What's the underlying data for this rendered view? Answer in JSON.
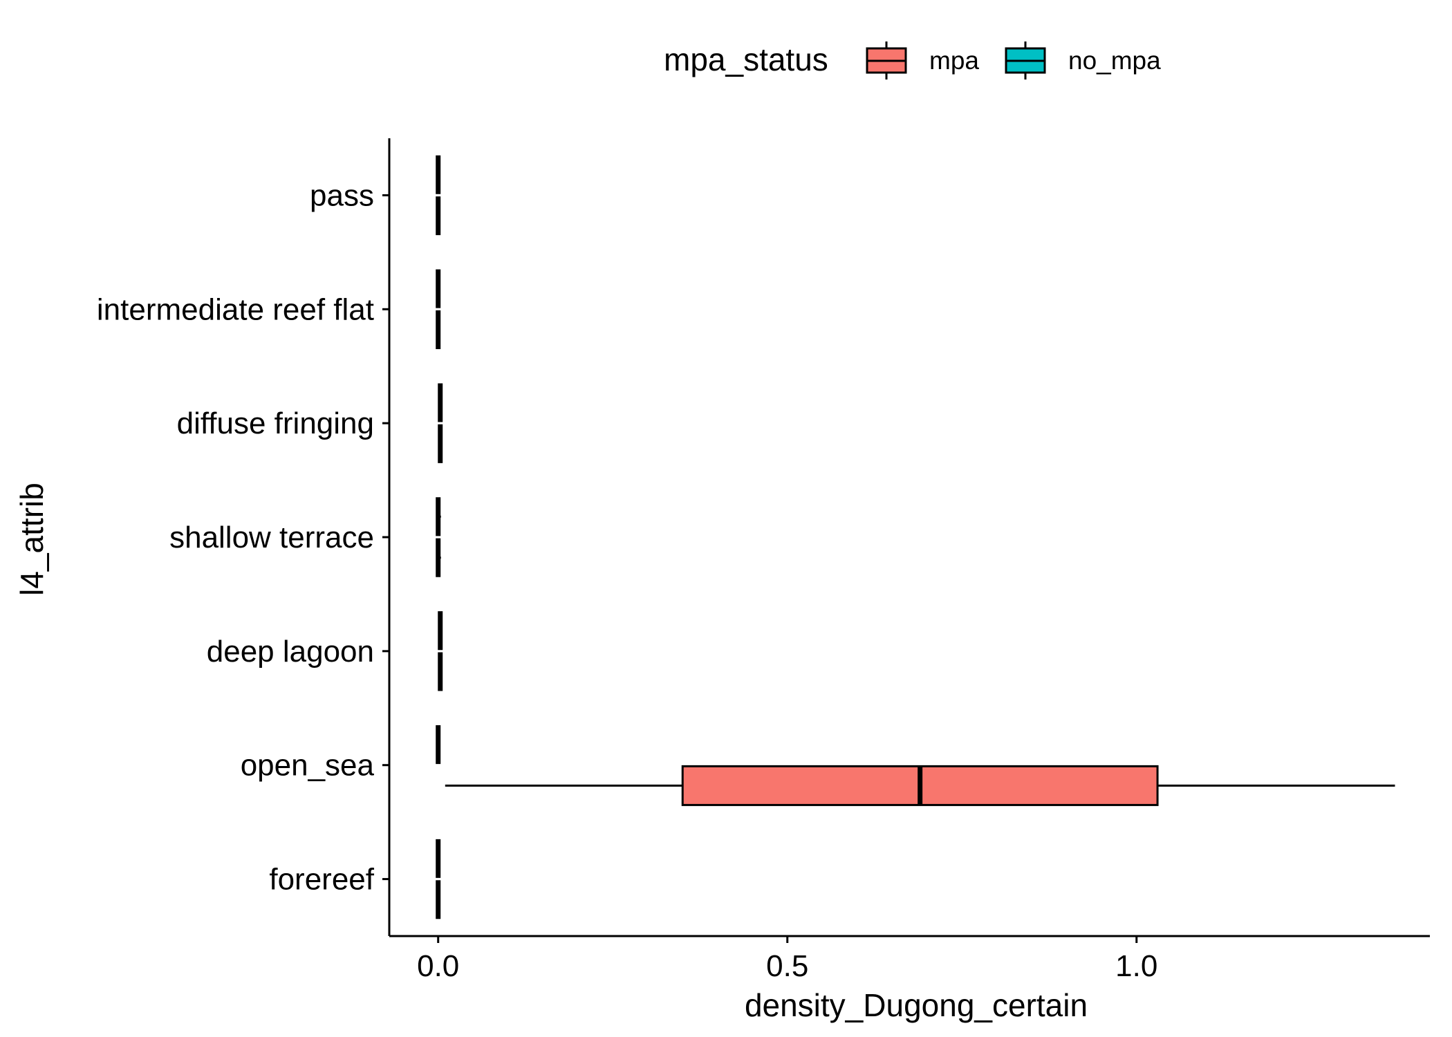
{
  "chart_data": {
    "type": "boxplot",
    "orientation": "horizontal",
    "title": "",
    "xlabel": "density_Dugong_certain",
    "ylabel": "l4_attrib",
    "xlim": [
      -0.07,
      1.42
    ],
    "x_ticks": [
      0.0,
      0.5,
      1.0
    ],
    "x_tick_labels": [
      "0.0",
      "0.5",
      "1.0"
    ],
    "categories": [
      "forereef",
      "open_sea",
      "deep lagoon",
      "shallow terrace",
      "diffuse fringing",
      "intermediate reef flat",
      "pass"
    ],
    "grid": false,
    "legend": {
      "title": "mpa_status",
      "position": "top",
      "entries": [
        {
          "label": "mpa",
          "color": "#F8766D"
        },
        {
          "label": "no_mpa",
          "color": "#00BFC4"
        }
      ]
    },
    "series": [
      {
        "name": "mpa",
        "color": "#F8766D",
        "boxes": [
          {
            "category": "forereef",
            "min": 0.0,
            "q1": 0.0,
            "median": 0.0,
            "q3": 0.0,
            "max": 0.0
          },
          {
            "category": "open_sea",
            "min": 0.01,
            "q1": 0.35,
            "median": 0.69,
            "q3": 1.03,
            "max": 1.37
          },
          {
            "category": "deep lagoon",
            "min": 0.003,
            "q1": 0.003,
            "median": 0.003,
            "q3": 0.003,
            "max": 0.003
          },
          {
            "category": "shallow terrace",
            "min": 0.0,
            "q1": 0.0,
            "median": 0.0,
            "q3": 0.0,
            "max": 0.004
          },
          {
            "category": "diffuse fringing",
            "min": 0.003,
            "q1": 0.003,
            "median": 0.003,
            "q3": 0.003,
            "max": 0.003
          },
          {
            "category": "intermediate reef flat",
            "min": 0.0,
            "q1": 0.0,
            "median": 0.0,
            "q3": 0.0,
            "max": 0.003
          },
          {
            "category": "pass",
            "min": 0.0,
            "q1": 0.0,
            "median": 0.0,
            "q3": 0.0,
            "max": 0.0
          }
        ]
      },
      {
        "name": "no_mpa",
        "color": "#00BFC4",
        "boxes": [
          {
            "category": "forereef",
            "min": 0.0,
            "q1": 0.0,
            "median": 0.0,
            "q3": 0.0,
            "max": 0.0
          },
          {
            "category": "open_sea",
            "min": 0.0,
            "q1": 0.0,
            "median": 0.0,
            "q3": 0.0,
            "max": 0.0
          },
          {
            "category": "deep lagoon",
            "min": 0.003,
            "q1": 0.003,
            "median": 0.003,
            "q3": 0.003,
            "max": 0.003
          },
          {
            "category": "shallow terrace",
            "min": 0.0,
            "q1": 0.0,
            "median": 0.0,
            "q3": 0.0,
            "max": 0.004
          },
          {
            "category": "diffuse fringing",
            "min": 0.003,
            "q1": 0.003,
            "median": 0.003,
            "q3": 0.003,
            "max": 0.003
          },
          {
            "category": "intermediate reef flat",
            "min": 0.0,
            "q1": 0.0,
            "median": 0.0,
            "q3": 0.0,
            "max": 0.003
          },
          {
            "category": "pass",
            "min": 0.0,
            "q1": 0.0,
            "median": 0.0,
            "q3": 0.0,
            "max": 0.0
          }
        ]
      }
    ]
  }
}
